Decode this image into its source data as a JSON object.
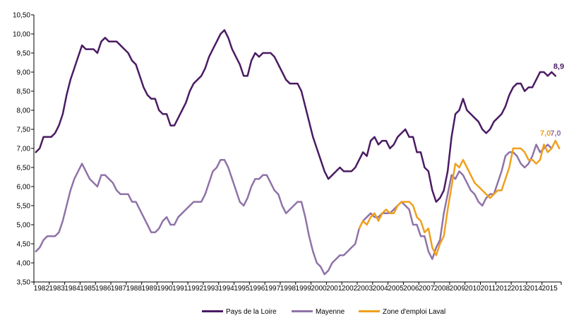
{
  "chart_data": {
    "type": "line",
    "x_start_year": 1982,
    "points_per_year": 4,
    "x_tick_labels": [
      "1982",
      "1983",
      "1984",
      "1985",
      "1986",
      "1987",
      "1988",
      "1989",
      "1990",
      "1991",
      "1992",
      "1993",
      "1994",
      "1995",
      "1996",
      "1997",
      "1998",
      "1999",
      "2000",
      "2001",
      "2002",
      "2003",
      "2004",
      "2005",
      "2006",
      "2007",
      "2008",
      "2009",
      "2010",
      "2011",
      "2012",
      "2013",
      "2014",
      "2015"
    ],
    "y_tick_labels": [
      "3,50",
      "4,00",
      "4,50",
      "5,00",
      "5,50",
      "6,00",
      "6,50",
      "7,00",
      "7,50",
      "8,00",
      "8,50",
      "9,00",
      "9,50",
      "10,00",
      "10,50"
    ],
    "ylim": [
      3.5,
      10.5
    ],
    "grid": false,
    "legend_position": "bottom",
    "series": [
      {
        "name": "Pays de la Loire",
        "color": "#4b1b63",
        "start_index": 0,
        "end_label": "8,9",
        "values": [
          6.9,
          7.0,
          7.3,
          7.3,
          7.3,
          7.4,
          7.6,
          7.9,
          8.4,
          8.8,
          9.1,
          9.4,
          9.7,
          9.6,
          9.6,
          9.6,
          9.5,
          9.8,
          9.9,
          9.8,
          9.8,
          9.8,
          9.7,
          9.6,
          9.5,
          9.3,
          9.2,
          8.9,
          8.6,
          8.4,
          8.3,
          8.3,
          8.0,
          7.9,
          7.9,
          7.6,
          7.6,
          7.8,
          8.0,
          8.2,
          8.5,
          8.7,
          8.8,
          8.9,
          9.1,
          9.4,
          9.6,
          9.8,
          10.0,
          10.1,
          9.9,
          9.6,
          9.4,
          9.2,
          8.9,
          8.9,
          9.3,
          9.5,
          9.4,
          9.5,
          9.5,
          9.5,
          9.4,
          9.2,
          9.0,
          8.8,
          8.7,
          8.7,
          8.7,
          8.5,
          8.1,
          7.7,
          7.3,
          7.0,
          6.7,
          6.4,
          6.2,
          6.3,
          6.4,
          6.5,
          6.4,
          6.4,
          6.4,
          6.5,
          6.7,
          6.9,
          6.8,
          7.2,
          7.3,
          7.1,
          7.2,
          7.2,
          7.0,
          7.1,
          7.3,
          7.4,
          7.5,
          7.3,
          7.3,
          6.9,
          6.9,
          6.5,
          6.4,
          5.9,
          5.6,
          5.7,
          5.9,
          6.4,
          7.3,
          7.9,
          8.0,
          8.3,
          8.0,
          7.9,
          7.8,
          7.7,
          7.5,
          7.4,
          7.5,
          7.7,
          7.8,
          7.9,
          8.1,
          8.4,
          8.6,
          8.7,
          8.7,
          8.5,
          8.6,
          8.6,
          8.8,
          9.0,
          9.0,
          8.9,
          9.0,
          8.9
        ]
      },
      {
        "name": "Mayenne",
        "color": "#8f73a8",
        "start_index": 0,
        "end_label": "7,0",
        "values": [
          4.3,
          4.4,
          4.6,
          4.7,
          4.7,
          4.7,
          4.8,
          5.1,
          5.5,
          5.9,
          6.2,
          6.4,
          6.6,
          6.4,
          6.2,
          6.1,
          6.0,
          6.3,
          6.3,
          6.2,
          6.1,
          5.9,
          5.8,
          5.8,
          5.8,
          5.6,
          5.6,
          5.4,
          5.2,
          5.0,
          4.8,
          4.8,
          4.9,
          5.1,
          5.2,
          5.0,
          5.0,
          5.2,
          5.3,
          5.4,
          5.5,
          5.6,
          5.6,
          5.6,
          5.8,
          6.1,
          6.4,
          6.5,
          6.7,
          6.7,
          6.5,
          6.2,
          5.9,
          5.6,
          5.5,
          5.7,
          6.0,
          6.2,
          6.2,
          6.3,
          6.3,
          6.1,
          5.9,
          5.8,
          5.5,
          5.3,
          5.4,
          5.5,
          5.6,
          5.6,
          5.2,
          4.7,
          4.3,
          4.0,
          3.9,
          3.7,
          3.8,
          4.0,
          4.1,
          4.2,
          4.2,
          4.3,
          4.4,
          4.5,
          4.9,
          5.1,
          5.2,
          5.3,
          5.2,
          5.2,
          5.3,
          5.3,
          5.3,
          5.4,
          5.5,
          5.6,
          5.5,
          5.4,
          5.0,
          5.0,
          4.7,
          4.7,
          4.3,
          4.1,
          4.4,
          4.6,
          5.3,
          5.8,
          6.3,
          6.2,
          6.4,
          6.3,
          6.1,
          5.9,
          5.8,
          5.6,
          5.5,
          5.7,
          5.8,
          5.8,
          6.1,
          6.4,
          6.8,
          6.9,
          6.9,
          6.8,
          6.6,
          6.5,
          6.6,
          6.8,
          7.1,
          6.9,
          7.0,
          7.1,
          7.0
        ]
      },
      {
        "name": "Zone d'emploi Laval",
        "color": "#f0a01c",
        "start_index": 84,
        "end_label": "7,0",
        "values": [
          4.9,
          5.1,
          5.0,
          5.2,
          5.3,
          5.1,
          5.3,
          5.4,
          5.3,
          5.3,
          5.5,
          5.6,
          5.6,
          5.6,
          5.5,
          5.2,
          5.1,
          4.8,
          4.9,
          4.4,
          4.2,
          4.5,
          4.7,
          5.4,
          6.0,
          6.6,
          6.5,
          6.7,
          6.5,
          6.3,
          6.1,
          6.0,
          5.9,
          5.8,
          5.7,
          5.8,
          5.9,
          5.9,
          6.2,
          6.5,
          7.0,
          7.0,
          7.0,
          6.9,
          6.7,
          6.7,
          6.6,
          6.7,
          7.1,
          6.9,
          7.0,
          7.2,
          7.0
        ]
      }
    ]
  }
}
